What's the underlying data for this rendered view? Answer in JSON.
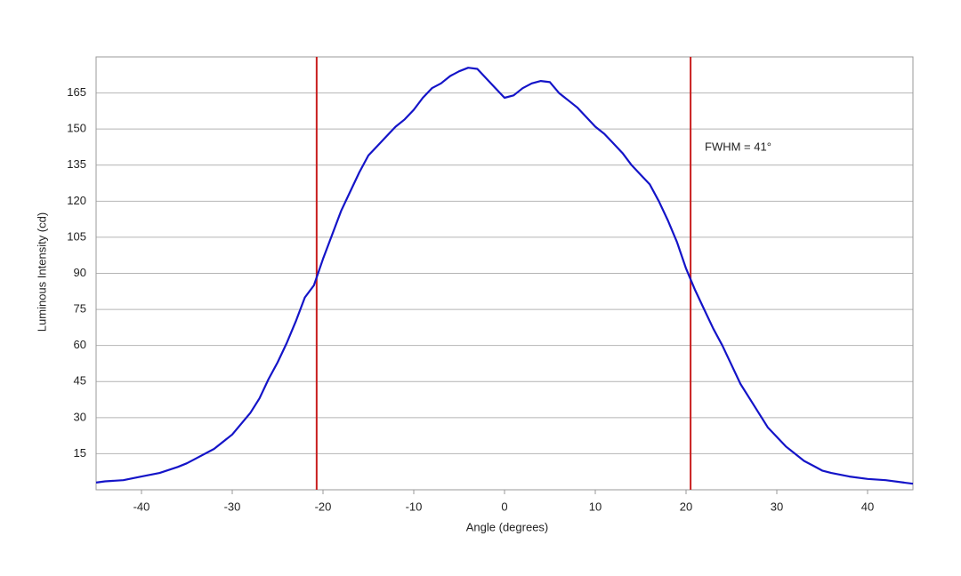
{
  "chart_data": {
    "type": "line",
    "x_label": "Angle (degrees)",
    "y_label": "Luminous Intensity (cd)",
    "annotation": "FWHM = 41°",
    "x": [
      -45,
      -44,
      -42,
      -40,
      -38,
      -36,
      -35,
      -34,
      -32,
      -30,
      -28,
      -27,
      -26,
      -25,
      -24,
      -23,
      -22,
      -21,
      -20,
      -19,
      -18,
      -17,
      -16,
      -15,
      -14,
      -13,
      -12,
      -11,
      -10,
      -9,
      -8,
      -7,
      -6,
      -5,
      -4,
      -3,
      -2,
      -1,
      0,
      1,
      2,
      3,
      4,
      5,
      6,
      7,
      8,
      9,
      10,
      11,
      12,
      13,
      14,
      15,
      16,
      17,
      18,
      19,
      20,
      21,
      22,
      23,
      24,
      25,
      26,
      27,
      28,
      29,
      30,
      31,
      32,
      33,
      34,
      35,
      36,
      38,
      40,
      42,
      44,
      45
    ],
    "values": [
      3,
      3.5,
      4,
      5.5,
      7,
      9.5,
      11,
      13,
      17,
      23,
      32,
      38,
      46,
      53,
      61,
      70,
      80,
      85,
      96,
      106,
      116,
      124,
      132,
      139,
      143,
      147,
      151,
      154,
      158,
      163,
      167,
      169,
      172,
      174,
      175.5,
      175,
      171,
      167,
      163,
      164,
      167,
      169,
      170,
      169.5,
      165,
      162,
      159,
      155,
      151,
      148,
      144,
      140,
      135,
      131,
      127,
      120,
      112,
      103,
      92,
      83,
      75,
      67,
      60,
      52,
      44,
      38,
      32,
      26,
      22,
      18,
      15,
      12,
      10,
      8,
      7,
      5.5,
      4.5,
      4,
      3,
      2.5
    ],
    "color": "#1414c8",
    "vlines": [
      -20.7,
      20.5
    ],
    "vline_color": "#c81e1e",
    "xlim": [
      -45,
      45
    ],
    "ylim": [
      0,
      180
    ],
    "xticks": [
      -40,
      -30,
      -20,
      -10,
      0,
      10,
      20,
      30,
      40
    ],
    "yticks": [
      15,
      30,
      45,
      60,
      75,
      90,
      105,
      120,
      135,
      150,
      165
    ],
    "grid": true
  }
}
